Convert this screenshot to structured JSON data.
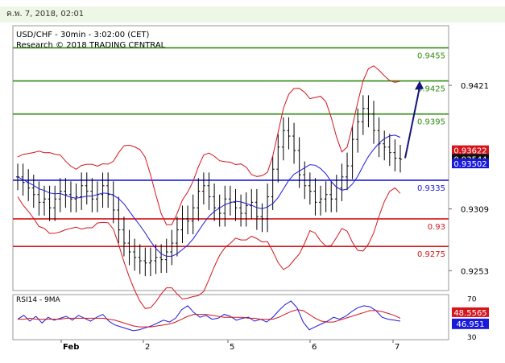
{
  "header": {
    "timestamp": "ค.พ. 7, 2018, 02:01"
  },
  "chart_data": {
    "type": "candlestick",
    "title": "USD/CHF - 30min - 3:02:00 (CET)",
    "subtitle": "Research © 2018 TRADING CENTRAL",
    "ylim": [
      0.9235,
      0.9475
    ],
    "y_ticks": [
      "0.9421",
      "0.9309",
      "0.9253"
    ],
    "x_ticks": [
      "Feb",
      "2",
      "5",
      "6",
      "7"
    ],
    "levels": [
      {
        "label": "0.9455",
        "value": 0.9455,
        "color": "#2e8b12"
      },
      {
        "label": "0.9425",
        "value": 0.9425,
        "color": "#2e8b12"
      },
      {
        "label": "0.9395",
        "value": 0.9395,
        "color": "#2e8b12"
      },
      {
        "label": "0.9335",
        "value": 0.9335,
        "color": "#1a1adb"
      },
      {
        "label": "0.93",
        "value": 0.93,
        "color": "#d4161c"
      },
      {
        "label": "0.9275",
        "value": 0.9275,
        "color": "#d4161c"
      }
    ],
    "price_tags": [
      {
        "label": "0.93622",
        "value": 0.93622,
        "bg": "#d4161c"
      },
      {
        "label": "0.93544",
        "value": 0.93544,
        "bg": "#111111"
      },
      {
        "label": "0.93502",
        "value": 0.93502,
        "bg": "#1a1adb"
      }
    ],
    "close_series": [
      0.9338,
      0.9333,
      0.9328,
      0.9322,
      0.9315,
      0.9318,
      0.931,
      0.9318,
      0.9325,
      0.9322,
      0.9318,
      0.932,
      0.933,
      0.9325,
      0.9318,
      0.9322,
      0.933,
      0.9322,
      0.9308,
      0.929,
      0.9278,
      0.927,
      0.9265,
      0.9262,
      0.926,
      0.9262,
      0.9265,
      0.9263,
      0.927,
      0.9278,
      0.929,
      0.93,
      0.9298,
      0.931,
      0.9325,
      0.933,
      0.932,
      0.931,
      0.9305,
      0.9318,
      0.9315,
      0.931,
      0.9305,
      0.9312,
      0.9315,
      0.9302,
      0.93,
      0.932,
      0.9345,
      0.9365,
      0.938,
      0.9375,
      0.9362,
      0.934,
      0.933,
      0.9325,
      0.9315,
      0.9318,
      0.9322,
      0.9318,
      0.9328,
      0.9338,
      0.9348,
      0.9372,
      0.9388,
      0.94,
      0.9395,
      0.938,
      0.9368,
      0.9365,
      0.936,
      0.9355,
      0.9354
    ],
    "projection": {
      "from": 0.9355,
      "to": 0.9425
    },
    "rsi": {
      "title": "RSI14 - 9MA",
      "value_label": "46.951",
      "ma_label": "48.5565",
      "ylim": [
        30,
        70
      ],
      "y_ticks": [
        "70",
        "30"
      ],
      "values": [
        48,
        52,
        46,
        51,
        44,
        50,
        47,
        49,
        51,
        47,
        52,
        49,
        46,
        50,
        53,
        46,
        42,
        40,
        38,
        36,
        37,
        39,
        41,
        44,
        47,
        45,
        49,
        58,
        62,
        55,
        50,
        52,
        48,
        49,
        53,
        51,
        47,
        49,
        50,
        46,
        48,
        45,
        50,
        57,
        63,
        67,
        60,
        45,
        37,
        40,
        43,
        46,
        50,
        48,
        51,
        56,
        60,
        62,
        61,
        57,
        50,
        48,
        47,
        46
      ],
      "ma": [
        48,
        48,
        49,
        48,
        48,
        48,
        48,
        48,
        49,
        49,
        49,
        49,
        49,
        49,
        49,
        48,
        47,
        45,
        43,
        41,
        40,
        40,
        40,
        41,
        42,
        43,
        45,
        48,
        51,
        53,
        53,
        53,
        52,
        51,
        50,
        50,
        50,
        50,
        49,
        49,
        48,
        48,
        48,
        50,
        53,
        56,
        58,
        57,
        53,
        49,
        46,
        45,
        45,
        47,
        49,
        51,
        53,
        55,
        57,
        57,
        56,
        54,
        52,
        49
      ]
    }
  }
}
